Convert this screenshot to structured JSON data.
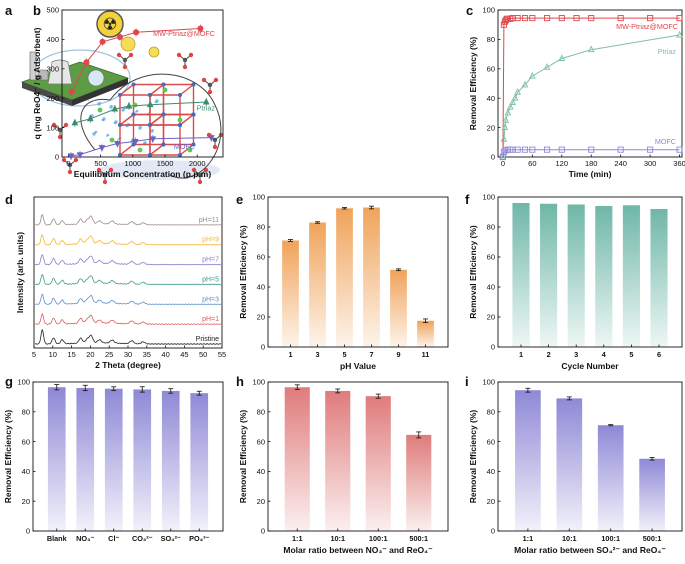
{
  "chart_data": [
    {
      "id": "a",
      "type": "illustration",
      "panel_label": "a",
      "radiation_symbol": "☢"
    },
    {
      "id": "b",
      "type": "scatter",
      "panel_label": "b",
      "xlabel": "Equilibrium Concentration (p.p.m)",
      "ylabel": "q (mg ReO4⁻ / g Adsorbent)",
      "xlim": [
        -100,
        2400
      ],
      "ylim": [
        0,
        500
      ],
      "xticks": [
        0,
        500,
        1000,
        1500,
        2000
      ],
      "yticks": [
        0,
        100,
        200,
        300,
        400,
        500
      ],
      "series": [
        {
          "name": "MW-Ptriaz@MOFC",
          "color": "#e0474c",
          "marker": "circle",
          "x": [
            50,
            280,
            530,
            800,
            1050,
            2050
          ],
          "y": [
            222,
            322,
            392,
            408,
            424,
            437
          ]
        },
        {
          "name": "Ptriaz",
          "color": "#3d8c6f",
          "marker": "triangle",
          "x": [
            100,
            340,
            720,
            940,
            1270,
            2140
          ],
          "y": [
            116,
            130,
            163,
            173,
            178,
            187
          ]
        },
        {
          "name": "MOFC",
          "color": "#6b63c3",
          "marker": "triangle-down",
          "x": [
            40,
            180,
            520,
            760,
            1040,
            1310,
            2220
          ],
          "y": [
            4,
            8,
            32,
            46,
            53,
            62,
            66
          ]
        }
      ]
    },
    {
      "id": "c",
      "type": "scatter",
      "panel_label": "c",
      "xlabel": "Time (min)",
      "ylabel": "Removal Efficiency (%)",
      "xlim": [
        -10,
        365
      ],
      "ylim": [
        0,
        100
      ],
      "xticks": [
        0,
        60,
        120,
        180,
        240,
        300,
        360
      ],
      "yticks": [
        0,
        20,
        40,
        60,
        80,
        100
      ],
      "series": [
        {
          "name": "MW-Ptriaz@MOFC",
          "color": "#e0474c",
          "marker": "square",
          "x": [
            0,
            2,
            4,
            6,
            8,
            10,
            15,
            20,
            30,
            45,
            60,
            90,
            120,
            150,
            180,
            240,
            300,
            360
          ],
          "y": [
            0,
            90,
            92,
            93,
            94,
            94,
            94,
            94.5,
            94.5,
            94.5,
            94.5,
            94.5,
            94.5,
            94.5,
            94.5,
            94.5,
            94.5,
            94.5
          ]
        },
        {
          "name": "Ptriaz",
          "color": "#7fbfa5",
          "marker": "triangle",
          "x": [
            0,
            2,
            4,
            6,
            10,
            15,
            20,
            25,
            30,
            45,
            60,
            90,
            120,
            180,
            360
          ],
          "y": [
            0,
            12,
            20,
            25,
            30,
            34,
            37,
            40,
            44,
            49,
            55,
            61,
            67,
            73,
            83
          ]
        },
        {
          "name": "MOFC",
          "color": "#8f89d6",
          "marker": "square",
          "x": [
            0,
            2,
            5,
            10,
            15,
            20,
            30,
            45,
            60,
            90,
            120,
            180,
            240,
            300,
            360
          ],
          "y": [
            0,
            3.5,
            4.5,
            5,
            5,
            5,
            5,
            5,
            5,
            5,
            5,
            5,
            5,
            5,
            5
          ]
        }
      ]
    },
    {
      "id": "d",
      "type": "line",
      "panel_label": "d",
      "xlabel": "2 Theta (degree)",
      "ylabel": "Intensity (arb. units)",
      "xlim": [
        5,
        55
      ],
      "xticks": [
        5,
        10,
        15,
        20,
        25,
        30,
        35,
        40,
        45,
        50,
        55
      ],
      "peaks_2theta": [
        7.2,
        10.2,
        12.5,
        17.4,
        19.2,
        20.2,
        22.4,
        25.8,
        31.0,
        34.0
      ],
      "series": [
        {
          "name": "pH=11",
          "color": "#a08c84"
        },
        {
          "name": "pH=9",
          "color": "#f2b632"
        },
        {
          "name": "pH=7",
          "color": "#8a7fc9"
        },
        {
          "name": "pH=5",
          "color": "#3f9b8a"
        },
        {
          "name": "pH=3",
          "color": "#5b8fc9"
        },
        {
          "name": "pH=1",
          "color": "#df5a5a"
        },
        {
          "name": "Pristine",
          "color": "#222222"
        }
      ]
    },
    {
      "id": "e",
      "type": "bar",
      "panel_label": "e",
      "xlabel": "pH Value",
      "ylabel": "Removal Efficiency (%)",
      "ylim": [
        0,
        100
      ],
      "yticks": [
        0,
        20,
        40,
        60,
        80,
        100
      ],
      "categories": [
        "1",
        "3",
        "5",
        "7",
        "9",
        "11"
      ],
      "values": [
        71,
        83,
        92.5,
        93,
        51.5,
        17.5
      ],
      "errors": [
        0.6,
        0.5,
        0.5,
        0.9,
        0.6,
        1.2
      ],
      "color": "#f0a35a"
    },
    {
      "id": "f",
      "type": "bar",
      "panel_label": "f",
      "xlabel": "Cycle Number",
      "ylabel": "Removal Efficiency (%)",
      "ylim": [
        0,
        100
      ],
      "yticks": [
        0,
        20,
        40,
        60,
        80,
        100
      ],
      "categories": [
        "1",
        "2",
        "3",
        "4",
        "5",
        "6"
      ],
      "values": [
        96,
        95.5,
        95,
        94,
        94.5,
        92
      ],
      "errors": [
        0,
        0,
        0,
        0,
        0,
        0
      ],
      "color": "#6fb7a8"
    },
    {
      "id": "g",
      "type": "bar",
      "panel_label": "g",
      "xlabel": "",
      "ylabel": "Removal Efficiency (%)",
      "ylim": [
        0,
        100
      ],
      "yticks": [
        0,
        20,
        40,
        60,
        80,
        100
      ],
      "categories": [
        "Blank",
        "NO₃⁻",
        "Cl⁻",
        "CO₃²⁻",
        "SO₄²⁻",
        "PO₄³⁻"
      ],
      "values": [
        96.5,
        96,
        95.5,
        95,
        94,
        92.5
      ],
      "errors": [
        1.8,
        1.8,
        1.3,
        1.8,
        1.5,
        1.3
      ],
      "color": "#8f89d6"
    },
    {
      "id": "h",
      "type": "bar",
      "panel_label": "h",
      "xlabel": "Molar ratio between NO₃⁻ and ReO₄⁻",
      "ylabel": "Removal Efficiency (%)",
      "ylim": [
        0,
        100
      ],
      "yticks": [
        0,
        20,
        40,
        60,
        80,
        100
      ],
      "categories": [
        "1:1",
        "10:1",
        "100:1",
        "500:1"
      ],
      "values": [
        96.5,
        94,
        90.5,
        64.5
      ],
      "errors": [
        1.6,
        1.3,
        1.4,
        2.0
      ],
      "color": "#e07b7b"
    },
    {
      "id": "i",
      "type": "bar",
      "panel_label": "i",
      "xlabel": "Molar ratio between SO₄²⁻ and ReO₄⁻",
      "ylabel": "Removal Efficiency (%)",
      "ylim": [
        0,
        100
      ],
      "yticks": [
        0,
        20,
        40,
        60,
        80,
        100
      ],
      "categories": [
        "1:1",
        "10:1",
        "100:1",
        "500:1"
      ],
      "values": [
        94.5,
        89,
        71,
        48.5
      ],
      "errors": [
        1.3,
        1.0,
        0.4,
        0.9
      ],
      "color": "#8f89d6"
    }
  ]
}
